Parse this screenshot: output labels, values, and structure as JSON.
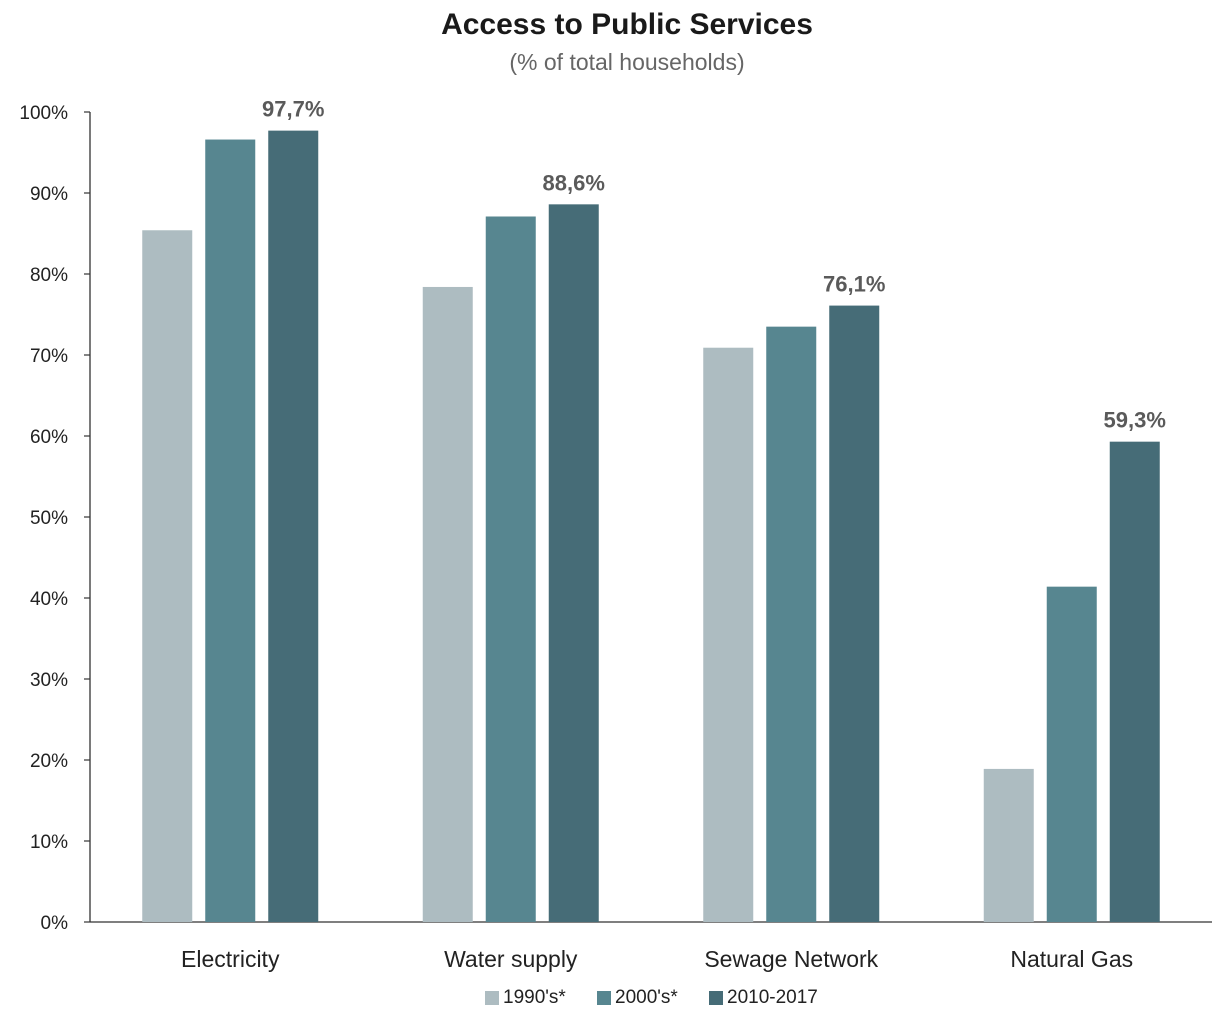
{
  "chart_data": {
    "type": "bar",
    "title": "Access to Public Services",
    "subtitle": "(% of total households)",
    "categories": [
      "Electricity",
      "Water supply",
      "Sewage Network",
      "Natural Gas"
    ],
    "series": [
      {
        "name": "1990's*",
        "color": "#adbcc1",
        "values": [
          85.4,
          78.4,
          70.9,
          18.9
        ]
      },
      {
        "name": "2000's*",
        "color": "#578690",
        "values": [
          96.6,
          87.1,
          73.5,
          41.4
        ]
      },
      {
        "name": "2010-2017",
        "color": "#466c77",
        "values": [
          97.7,
          88.6,
          76.1,
          59.3
        ]
      }
    ],
    "data_labels": [
      "97,7%",
      "88,6%",
      "76,1%",
      "59,3%"
    ],
    "yticks": [
      "0%",
      "10%",
      "20%",
      "30%",
      "40%",
      "50%",
      "60%",
      "70%",
      "80%",
      "90%",
      "100%"
    ],
    "ylim": [
      0,
      100
    ],
    "grid": false,
    "legend_position": "bottom"
  }
}
